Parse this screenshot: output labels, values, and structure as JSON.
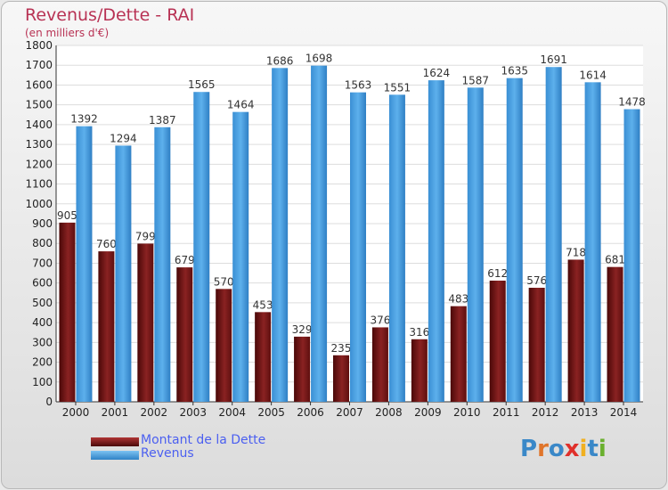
{
  "title": "Revenus/Dette - RAI",
  "subtitle": "(en milliers d'€)",
  "logo": {
    "text": "Proxiti",
    "colors": [
      "#3a88c8",
      "#e0752b",
      "#3a88c8",
      "#e0302b",
      "#f0b020",
      "#3a88c8",
      "#6ab02e"
    ]
  },
  "colors": {
    "dette": "#7a1515",
    "revenus": "#4ba3e3",
    "title": "#b83254",
    "legend_text": "#4b5ff0"
  },
  "chart_data": {
    "type": "bar",
    "title": "Revenus/Dette - RAI",
    "subtitle": "(en milliers d'€)",
    "categories": [
      "2000",
      "2001",
      "2002",
      "2003",
      "2004",
      "2005",
      "2006",
      "2007",
      "2008",
      "2009",
      "2010",
      "2011",
      "2012",
      "2013",
      "2014"
    ],
    "series": [
      {
        "name": "Montant de la Dette",
        "values": [
          905,
          760,
          799,
          679,
          570,
          453,
          329,
          235,
          376,
          316,
          483,
          612,
          576,
          718,
          681
        ]
      },
      {
        "name": "Revenus",
        "values": [
          1392,
          1294,
          1387,
          1565,
          1464,
          1686,
          1698,
          1563,
          1551,
          1624,
          1587,
          1635,
          1691,
          1614,
          1478
        ]
      }
    ],
    "ylim": [
      0,
      1800
    ],
    "ytick_step": 100,
    "grid": true,
    "legend_position": "bottom-left"
  }
}
